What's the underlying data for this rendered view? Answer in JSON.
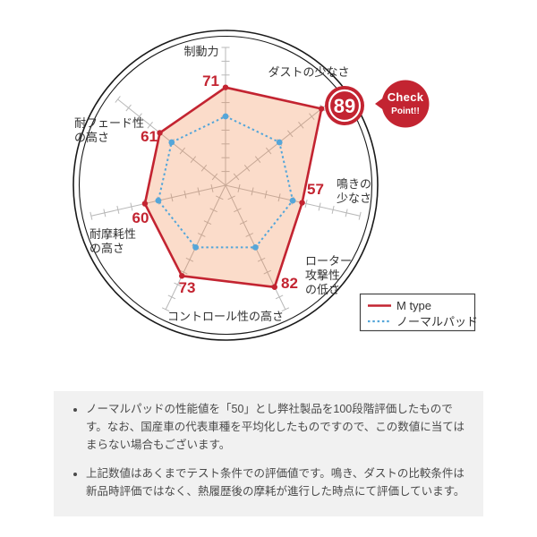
{
  "chart_data": {
    "type": "radar",
    "axes": [
      "制動力",
      "ダストの少なさ",
      "鳴きの少なさ",
      "ローター攻撃性の低さ",
      "コントロール性の高さ",
      "耐摩耗性の高さ",
      "耐フェード性の高さ"
    ],
    "axes_display": [
      [
        "制動力"
      ],
      [
        "ダストの少なさ"
      ],
      [
        "鳴きの",
        "少なさ"
      ],
      [
        "ローター",
        "攻撃性",
        "の低さ"
      ],
      [
        "コントロール性の高さ"
      ],
      [
        "耐摩耗性",
        "の高さ"
      ],
      [
        "耐フェード性",
        "の高さ"
      ]
    ],
    "scale": {
      "min": 0,
      "max": 100,
      "tick_step": 10
    },
    "series": [
      {
        "name": "M type",
        "line": "solid",
        "color": "#c32431",
        "values": [
          71,
          89,
          57,
          82,
          73,
          60,
          61
        ]
      },
      {
        "name": "ノーマルパッド",
        "line": "dotted",
        "color": "#55a6d9",
        "values": [
          50,
          50,
          50,
          50,
          50,
          50,
          50
        ]
      }
    ],
    "highlight": {
      "axis": "ダストの少なさ",
      "value": 89
    },
    "legend_position": "bottom-right",
    "grid": "ticks-on-axes"
  },
  "badge": {
    "check_line1": "Check",
    "check_line2": "Point!!"
  },
  "legend": {
    "items": [
      "M type",
      "ノーマルパッド"
    ]
  },
  "notes": [
    "ノーマルパッドの性能値を「50」とし弊社製品を100段階評価したものです。なお、国産車の代表車種を平均化したものですので、この数値に当てはまらない場合もございます。",
    "上記数値はあくまでテスト条件での評価値です。鳴き、ダストの比較条件は新品時評価ではなく、熱履歴後の摩耗が進行した時点にて評価しています。"
  ],
  "colors": {
    "accent_red": "#c32431",
    "normal_blue": "#55a6d9",
    "fill_peach": "rgba(240,125,60,0.27)",
    "axis_gray": "#b8b8b8",
    "ring_black": "#1a1a1a",
    "panel_gray": "#f1f1f1"
  }
}
